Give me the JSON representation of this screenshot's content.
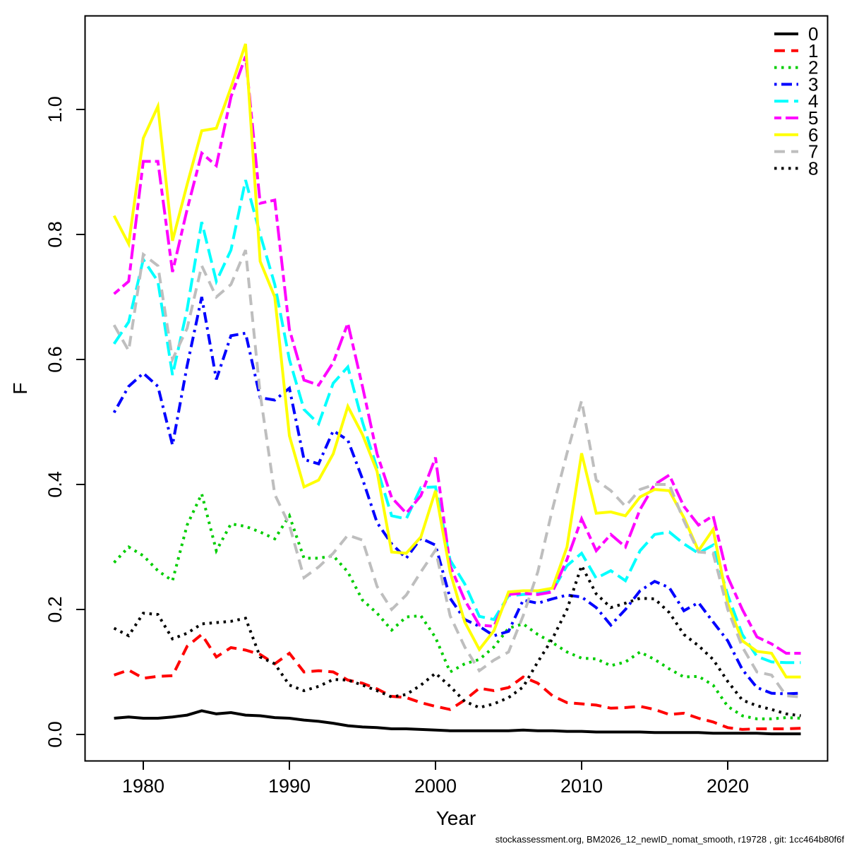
{
  "footer": {
    "text": "stockassessment.org, BM2026_12_newID_nomat_smooth, r19728 , git: 1cc464b80f6f"
  },
  "chart_data": {
    "type": "line",
    "title": "",
    "xlabel": "Year",
    "ylabel": "F",
    "grid": false,
    "legend_position": "top-right",
    "xlim": [
      1976,
      2027
    ],
    "ylim": [
      -0.04,
      1.15
    ],
    "x_tick_labels": [
      "1980",
      "1990",
      "2000",
      "2010",
      "2020"
    ],
    "y_tick_labels": [
      "0.0",
      "0.2",
      "0.4",
      "0.6",
      "0.8",
      "1.0"
    ],
    "years": [
      1978,
      1979,
      1980,
      1981,
      1982,
      1983,
      1984,
      1985,
      1986,
      1987,
      1988,
      1989,
      1990,
      1991,
      1992,
      1993,
      1994,
      1995,
      1996,
      1997,
      1998,
      1999,
      2000,
      2001,
      2002,
      2003,
      2004,
      2005,
      2006,
      2007,
      2008,
      2009,
      2010,
      2011,
      2012,
      2013,
      2014,
      2015,
      2016,
      2017,
      2018,
      2019,
      2020,
      2021,
      2022,
      2023,
      2024,
      2025
    ],
    "series": [
      {
        "label": "0",
        "color": "#000000",
        "linetype": "solid",
        "values": [
          0.026,
          0.028,
          0.026,
          0.026,
          0.028,
          0.031,
          0.038,
          0.033,
          0.035,
          0.031,
          0.03,
          0.027,
          0.026,
          0.023,
          0.021,
          0.018,
          0.014,
          0.012,
          0.011,
          0.009,
          0.009,
          0.008,
          0.007,
          0.006,
          0.006,
          0.006,
          0.006,
          0.006,
          0.007,
          0.006,
          0.006,
          0.005,
          0.005,
          0.004,
          0.004,
          0.004,
          0.004,
          0.003,
          0.003,
          0.003,
          0.003,
          0.002,
          0.002,
          0.002,
          0.002,
          0.001,
          0.001,
          0.001
        ]
      },
      {
        "label": "1",
        "color": "#ff0000",
        "linetype": "dashed",
        "values": [
          0.095,
          0.103,
          0.09,
          0.093,
          0.094,
          0.141,
          0.16,
          0.124,
          0.139,
          0.135,
          0.128,
          0.113,
          0.13,
          0.1,
          0.102,
          0.1,
          0.087,
          0.082,
          0.073,
          0.061,
          0.059,
          0.051,
          0.045,
          0.04,
          0.055,
          0.074,
          0.07,
          0.075,
          0.092,
          0.082,
          0.062,
          0.051,
          0.049,
          0.047,
          0.042,
          0.043,
          0.045,
          0.04,
          0.032,
          0.034,
          0.026,
          0.02,
          0.011,
          0.008,
          0.009,
          0.009,
          0.009,
          0.01
        ]
      },
      {
        "label": "2",
        "color": "#00cd00",
        "linetype": "dotted",
        "values": [
          0.275,
          0.3,
          0.286,
          0.262,
          0.246,
          0.335,
          0.385,
          0.294,
          0.337,
          0.333,
          0.324,
          0.313,
          0.35,
          0.282,
          0.282,
          0.286,
          0.26,
          0.215,
          0.194,
          0.167,
          0.188,
          0.19,
          0.155,
          0.1,
          0.113,
          0.12,
          0.14,
          0.17,
          0.177,
          0.16,
          0.147,
          0.132,
          0.122,
          0.121,
          0.11,
          0.116,
          0.132,
          0.12,
          0.105,
          0.092,
          0.093,
          0.079,
          0.045,
          0.03,
          0.025,
          0.025,
          0.027,
          0.026
        ]
      },
      {
        "label": "3",
        "color": "#0000ff",
        "linetype": "dotdash",
        "values": [
          0.515,
          0.557,
          0.578,
          0.557,
          0.463,
          0.59,
          0.7,
          0.568,
          0.638,
          0.642,
          0.539,
          0.535,
          0.554,
          0.44,
          0.433,
          0.486,
          0.471,
          0.409,
          0.339,
          0.305,
          0.282,
          0.314,
          0.303,
          0.218,
          0.184,
          0.173,
          0.158,
          0.165,
          0.215,
          0.21,
          0.217,
          0.223,
          0.22,
          0.203,
          0.175,
          0.2,
          0.23,
          0.245,
          0.235,
          0.198,
          0.211,
          0.18,
          0.15,
          0.104,
          0.075,
          0.066,
          0.065,
          0.066
        ]
      },
      {
        "label": "4",
        "color": "#00ffff",
        "linetype": "longdash",
        "values": [
          0.625,
          0.66,
          0.76,
          0.725,
          0.575,
          0.68,
          0.82,
          0.725,
          0.775,
          0.887,
          0.8,
          0.72,
          0.6,
          0.52,
          0.497,
          0.562,
          0.588,
          0.5,
          0.426,
          0.35,
          0.345,
          0.395,
          0.396,
          0.279,
          0.241,
          0.189,
          0.184,
          0.222,
          0.224,
          0.226,
          0.23,
          0.27,
          0.29,
          0.25,
          0.262,
          0.246,
          0.294,
          0.32,
          0.324,
          0.305,
          0.29,
          0.303,
          0.223,
          0.16,
          0.125,
          0.116,
          0.115,
          0.115
        ]
      },
      {
        "label": "5",
        "color": "#ff00ff",
        "linetype": "twodash",
        "values": [
          0.705,
          0.725,
          0.917,
          0.917,
          0.74,
          0.84,
          0.93,
          0.91,
          1.02,
          1.085,
          0.85,
          0.855,
          0.648,
          0.567,
          0.559,
          0.595,
          0.658,
          0.557,
          0.449,
          0.379,
          0.354,
          0.382,
          0.443,
          0.27,
          0.215,
          0.175,
          0.173,
          0.224,
          0.226,
          0.224,
          0.228,
          0.28,
          0.345,
          0.294,
          0.32,
          0.3,
          0.36,
          0.4,
          0.415,
          0.365,
          0.335,
          0.35,
          0.252,
          0.2,
          0.156,
          0.145,
          0.13,
          0.13
        ]
      },
      {
        "label": "6",
        "color": "#ffff00",
        "linetype": "solid",
        "values": [
          0.83,
          0.785,
          0.954,
          1.005,
          0.79,
          0.88,
          0.966,
          0.97,
          1.035,
          1.105,
          0.757,
          0.7,
          0.478,
          0.396,
          0.407,
          0.449,
          0.525,
          0.48,
          0.421,
          0.292,
          0.29,
          0.316,
          0.39,
          0.26,
          0.18,
          0.136,
          0.166,
          0.228,
          0.23,
          0.23,
          0.234,
          0.3,
          0.45,
          0.354,
          0.356,
          0.35,
          0.38,
          0.392,
          0.39,
          0.347,
          0.294,
          0.328,
          0.21,
          0.15,
          0.133,
          0.13,
          0.092,
          0.092
        ]
      },
      {
        "label": "7",
        "color": "#bebebe",
        "linetype": "dashed",
        "values": [
          0.655,
          0.614,
          0.768,
          0.75,
          0.6,
          0.65,
          0.75,
          0.7,
          0.72,
          0.775,
          0.545,
          0.384,
          0.335,
          0.251,
          0.268,
          0.29,
          0.319,
          0.311,
          0.237,
          0.2,
          0.223,
          0.26,
          0.295,
          0.19,
          0.14,
          0.102,
          0.119,
          0.132,
          0.19,
          0.26,
          0.36,
          0.45,
          0.534,
          0.407,
          0.39,
          0.365,
          0.392,
          0.4,
          0.4,
          0.342,
          0.292,
          0.29,
          0.2,
          0.14,
          0.1,
          0.095,
          0.062,
          0.06
        ]
      },
      {
        "label": "8",
        "color": "#000000",
        "linetype": "dotted",
        "values": [
          0.17,
          0.158,
          0.194,
          0.192,
          0.153,
          0.162,
          0.177,
          0.179,
          0.181,
          0.186,
          0.124,
          0.113,
          0.079,
          0.07,
          0.077,
          0.088,
          0.087,
          0.079,
          0.07,
          0.06,
          0.064,
          0.079,
          0.098,
          0.077,
          0.053,
          0.043,
          0.049,
          0.059,
          0.076,
          0.116,
          0.153,
          0.2,
          0.27,
          0.225,
          0.203,
          0.21,
          0.218,
          0.217,
          0.195,
          0.16,
          0.142,
          0.12,
          0.085,
          0.055,
          0.046,
          0.04,
          0.033,
          0.03
        ]
      }
    ]
  }
}
